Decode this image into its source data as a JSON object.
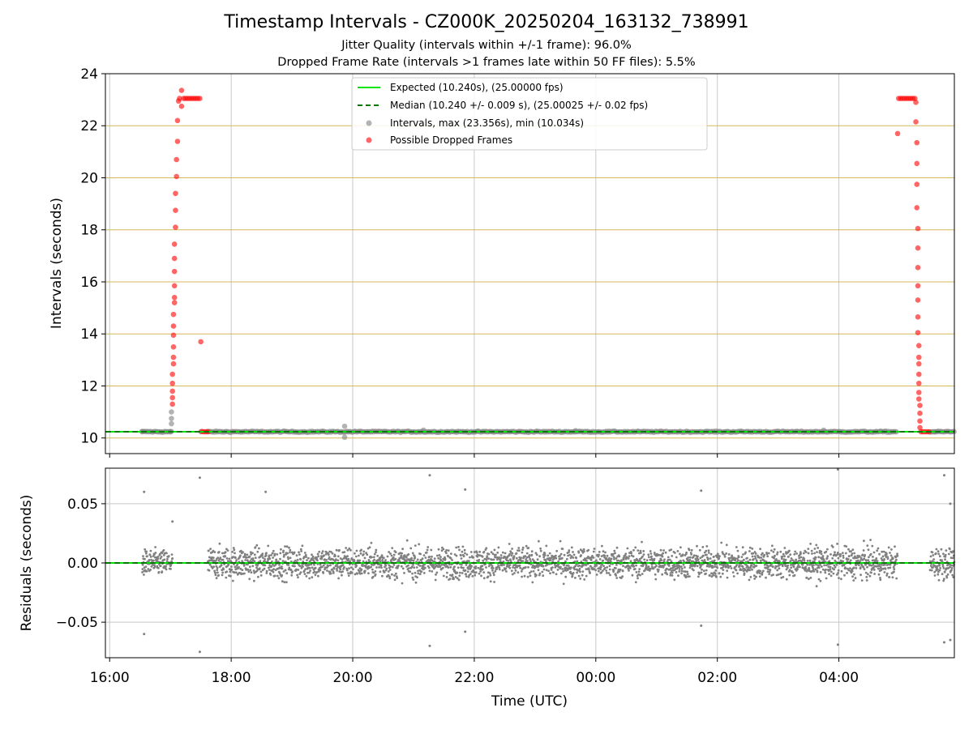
{
  "title": "Timestamp Intervals - CZ000K_20250204_163132_738991",
  "subtitle1": "Jitter Quality (intervals within +/-1 frame): 96.0%",
  "subtitle2": "Dropped Frame Rate (intervals >1 frames late within 50 FF files): 5.5%",
  "colors": {
    "expected": "#00e600",
    "median": "#007a00",
    "intervals": "#808080",
    "dropped": "#ff0000",
    "hgrid_top": "#d4b85a",
    "grid": "#c8c8c8"
  },
  "chart_data": [
    {
      "type": "scatter",
      "panel": "top",
      "ylabel": "Intervals (seconds)",
      "ylim": [
        9.4,
        24
      ],
      "yticks": [
        10,
        12,
        14,
        16,
        18,
        20,
        22,
        24
      ],
      "ytick_labels": [
        "10",
        "12",
        "14",
        "16",
        "18",
        "20",
        "22",
        "24"
      ],
      "xlim_hours": [
        15.93,
        29.9
      ],
      "grid": true,
      "legend_position": "top-center",
      "legend": [
        "Expected (10.240s), (25.00000 fps)",
        "Median (10.240 +/- 0.009 s), (25.00025 +/- 0.02 fps)",
        "Intervals, max (23.356s), min (10.034s)",
        "Possible Dropped Frames"
      ],
      "expected": 10.24,
      "median": 10.24,
      "intervals_baseline": 10.24,
      "intervals_max": 23.356,
      "intervals_min": 10.034,
      "interval_points": [
        {
          "x": "16:32",
          "y": 10.24
        },
        {
          "x": "17:00",
          "y": 10.24
        },
        {
          "x": "17:01",
          "y": 10.75
        },
        {
          "x": "17:01",
          "y": 10.55
        },
        {
          "x": "17:01",
          "y": 11.0
        },
        {
          "x": "17:30",
          "y": 10.24
        },
        {
          "x": "19:52",
          "y": 10.45
        },
        {
          "x": "19:52",
          "y": 10.03
        },
        {
          "x": "21:10",
          "y": 10.3
        },
        {
          "x": "23:40",
          "y": 10.28
        },
        {
          "x": "03:45",
          "y": 10.3
        },
        {
          "x": "05:35",
          "y": 10.24
        }
      ],
      "dropped_points": [
        {
          "x": "17:02",
          "y": 11.3
        },
        {
          "x": "17:02",
          "y": 11.55
        },
        {
          "x": "17:02",
          "y": 11.8
        },
        {
          "x": "17:02",
          "y": 12.1
        },
        {
          "x": "17:02",
          "y": 12.45
        },
        {
          "x": "17:03",
          "y": 12.85
        },
        {
          "x": "17:03",
          "y": 13.1
        },
        {
          "x": "17:03",
          "y": 13.5
        },
        {
          "x": "17:03",
          "y": 13.95
        },
        {
          "x": "17:03",
          "y": 14.3
        },
        {
          "x": "17:03",
          "y": 14.75
        },
        {
          "x": "17:04",
          "y": 15.2
        },
        {
          "x": "17:04",
          "y": 15.4
        },
        {
          "x": "17:04",
          "y": 15.85
        },
        {
          "x": "17:04",
          "y": 16.4
        },
        {
          "x": "17:04",
          "y": 16.9
        },
        {
          "x": "17:04",
          "y": 17.45
        },
        {
          "x": "17:05",
          "y": 18.1
        },
        {
          "x": "17:05",
          "y": 18.75
        },
        {
          "x": "17:05",
          "y": 19.4
        },
        {
          "x": "17:06",
          "y": 20.05
        },
        {
          "x": "17:06",
          "y": 20.7
        },
        {
          "x": "17:07",
          "y": 21.4
        },
        {
          "x": "17:07",
          "y": 22.2
        },
        {
          "x": "17:08",
          "y": 22.95
        },
        {
          "x": "17:09",
          "y": 23.05
        },
        {
          "x": "17:11",
          "y": 23.36
        },
        {
          "x": "17:11",
          "y": 22.75
        },
        {
          "x": "17:13",
          "y": 23.05
        },
        {
          "x": "17:15",
          "y": 23.05
        },
        {
          "x": "17:17",
          "y": 23.05
        },
        {
          "x": "17:19",
          "y": 23.05
        },
        {
          "x": "17:21",
          "y": 23.05
        },
        {
          "x": "17:23",
          "y": 23.05
        },
        {
          "x": "17:25",
          "y": 23.05
        },
        {
          "x": "17:27",
          "y": 23.05
        },
        {
          "x": "17:29",
          "y": 23.05
        },
        {
          "x": "17:30",
          "y": 13.7
        },
        {
          "x": "17:31",
          "y": 10.25
        },
        {
          "x": "17:33",
          "y": 10.24
        },
        {
          "x": "17:35",
          "y": 10.24
        },
        {
          "x": "17:37",
          "y": 10.24
        },
        {
          "x": "04:58",
          "y": 21.7
        },
        {
          "x": "04:59",
          "y": 23.05
        },
        {
          "x": "05:01",
          "y": 23.05
        },
        {
          "x": "05:03",
          "y": 23.05
        },
        {
          "x": "05:05",
          "y": 23.05
        },
        {
          "x": "05:07",
          "y": 23.05
        },
        {
          "x": "05:09",
          "y": 23.05
        },
        {
          "x": "05:11",
          "y": 23.05
        },
        {
          "x": "05:13",
          "y": 23.05
        },
        {
          "x": "05:15",
          "y": 23.05
        },
        {
          "x": "05:16",
          "y": 22.9
        },
        {
          "x": "05:16",
          "y": 22.15
        },
        {
          "x": "05:17",
          "y": 21.35
        },
        {
          "x": "05:17",
          "y": 20.55
        },
        {
          "x": "05:17",
          "y": 19.75
        },
        {
          "x": "05:17",
          "y": 18.85
        },
        {
          "x": "05:18",
          "y": 18.05
        },
        {
          "x": "05:18",
          "y": 17.3
        },
        {
          "x": "05:18",
          "y": 16.55
        },
        {
          "x": "05:18",
          "y": 15.85
        },
        {
          "x": "05:18",
          "y": 15.3
        },
        {
          "x": "05:18",
          "y": 14.65
        },
        {
          "x": "05:18",
          "y": 14.05
        },
        {
          "x": "05:19",
          "y": 13.55
        },
        {
          "x": "05:19",
          "y": 13.1
        },
        {
          "x": "05:19",
          "y": 12.85
        },
        {
          "x": "05:19",
          "y": 12.45
        },
        {
          "x": "05:19",
          "y": 12.1
        },
        {
          "x": "05:19",
          "y": 11.75
        },
        {
          "x": "05:19",
          "y": 11.5
        },
        {
          "x": "05:20",
          "y": 11.25
        },
        {
          "x": "05:20",
          "y": 10.95
        },
        {
          "x": "05:20",
          "y": 10.65
        },
        {
          "x": "05:20",
          "y": 10.4
        },
        {
          "x": "05:21",
          "y": 10.24
        },
        {
          "x": "05:23",
          "y": 10.24
        },
        {
          "x": "05:25",
          "y": 10.24
        },
        {
          "x": "05:27",
          "y": 10.24
        },
        {
          "x": "05:29",
          "y": 10.24
        }
      ]
    },
    {
      "type": "scatter",
      "panel": "bottom",
      "xlabel": "Time (UTC)",
      "ylabel": "Residuals (seconds)",
      "ylim": [
        -0.08,
        0.08
      ],
      "yticks": [
        -0.05,
        0.0,
        0.05
      ],
      "ytick_labels": [
        "−0.05",
        "0.00",
        "0.05"
      ],
      "xlim_hours": [
        15.93,
        29.9
      ],
      "xticks_hours": [
        16,
        18,
        20,
        22,
        24,
        26,
        28
      ],
      "xtick_labels": [
        "16:00",
        "18:00",
        "20:00",
        "22:00",
        "00:00",
        "02:00",
        "04:00"
      ],
      "grid": true,
      "segments": [
        {
          "start": "16:32",
          "end": "17:02",
          "spread": 0.01
        },
        {
          "start": "17:37",
          "end": "04:58",
          "spread": 0.012
        },
        {
          "start": "05:30",
          "end": "05:54",
          "spread": 0.012
        }
      ],
      "outliers": [
        {
          "x": "16:34",
          "y": 0.06
        },
        {
          "x": "16:34",
          "y": -0.06
        },
        {
          "x": "17:02",
          "y": 0.035
        },
        {
          "x": "17:29",
          "y": 0.072
        },
        {
          "x": "17:29",
          "y": -0.075
        },
        {
          "x": "18:34",
          "y": 0.06
        },
        {
          "x": "21:16",
          "y": 0.074
        },
        {
          "x": "21:16",
          "y": -0.07
        },
        {
          "x": "21:51",
          "y": 0.062
        },
        {
          "x": "21:51",
          "y": -0.058
        },
        {
          "x": "01:44",
          "y": 0.061
        },
        {
          "x": "01:44",
          "y": -0.053
        },
        {
          "x": "03:59",
          "y": 0.079
        },
        {
          "x": "03:59",
          "y": -0.069
        },
        {
          "x": "05:44",
          "y": 0.074
        },
        {
          "x": "05:44",
          "y": -0.067
        },
        {
          "x": "05:50",
          "y": 0.05
        },
        {
          "x": "05:50",
          "y": -0.065
        }
      ]
    }
  ]
}
